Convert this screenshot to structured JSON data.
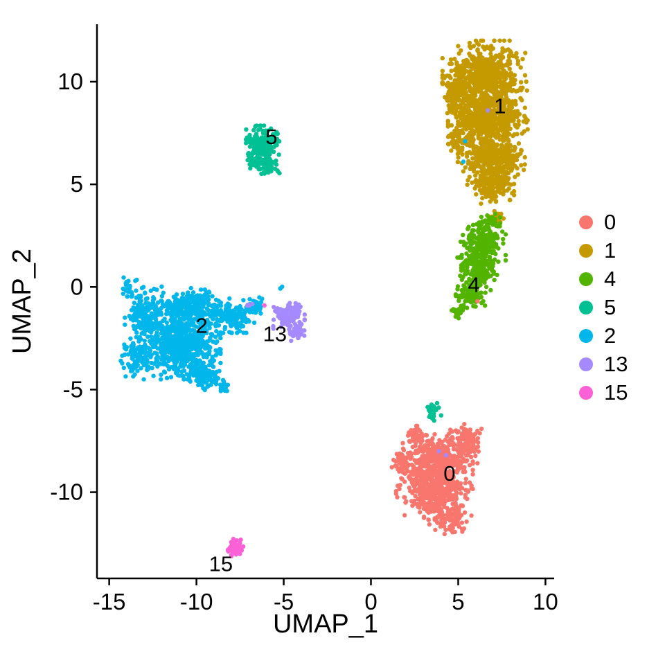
{
  "chart_data": {
    "type": "scatter",
    "title": "",
    "xlabel": "UMAP_1",
    "ylabel": "UMAP_2",
    "xlim": [
      -15.7,
      10.5
    ],
    "ylim": [
      -14.2,
      12.8
    ],
    "x_ticks": [
      -15,
      -10,
      -5,
      0,
      5,
      10
    ],
    "y_ticks": [
      -10,
      -5,
      0,
      5,
      10
    ],
    "grid": false,
    "legend_position": "right",
    "axis_color": "#000000",
    "text_color": "#000000",
    "legend": [
      {
        "label": "0",
        "color": "#F8766D"
      },
      {
        "label": "1",
        "color": "#C49A00"
      },
      {
        "label": "4",
        "color": "#53B400"
      },
      {
        "label": "5",
        "color": "#00C094"
      },
      {
        "label": "2",
        "color": "#00B6EB"
      },
      {
        "label": "13",
        "color": "#A58AFF"
      },
      {
        "label": "15",
        "color": "#FB61D7"
      }
    ],
    "clusters": [
      {
        "id": "1",
        "color": "#C49A00",
        "label": "1",
        "label_pos": [
          7.4,
          8.8
        ],
        "blobs": [
          {
            "cx": 6.5,
            "cy": 10.2,
            "rx": 2.0,
            "ry": 1.5,
            "n": 600
          },
          {
            "cx": 6.7,
            "cy": 8.2,
            "rx": 1.9,
            "ry": 1.3,
            "n": 550
          },
          {
            "cx": 6.9,
            "cy": 6.3,
            "rx": 1.6,
            "ry": 1.1,
            "n": 380
          },
          {
            "cx": 7.0,
            "cy": 4.9,
            "rx": 1.0,
            "ry": 0.7,
            "n": 140
          },
          {
            "cx": 4.8,
            "cy": 9.4,
            "rx": 0.6,
            "ry": 1.0,
            "n": 90
          },
          {
            "cx": 4.9,
            "cy": 7.1,
            "rx": 0.4,
            "ry": 0.7,
            "n": 45
          },
          {
            "cx": 7.2,
            "cy": 3.4,
            "rx": 0.4,
            "ry": 0.3,
            "n": 25
          }
        ]
      },
      {
        "id": "4",
        "color": "#53B400",
        "label": "4",
        "label_pos": [
          5.9,
          0.1
        ],
        "blobs": [
          {
            "cx": 6.4,
            "cy": 2.1,
            "rx": 1.1,
            "ry": 1.0,
            "n": 220
          },
          {
            "cx": 6.1,
            "cy": 0.8,
            "rx": 1.0,
            "ry": 0.9,
            "n": 190
          },
          {
            "cx": 5.7,
            "cy": -0.5,
            "rx": 0.7,
            "ry": 0.6,
            "n": 90
          },
          {
            "cx": 5.0,
            "cy": -1.2,
            "rx": 0.35,
            "ry": 0.3,
            "n": 25
          },
          {
            "cx": 6.8,
            "cy": 3.2,
            "rx": 0.5,
            "ry": 0.3,
            "n": 35
          }
        ]
      },
      {
        "id": "5",
        "color": "#00C094",
        "label": "5",
        "label_pos": [
          -5.7,
          7.3
        ],
        "blobs": [
          {
            "cx": -6.2,
            "cy": 6.9,
            "rx": 0.85,
            "ry": 0.8,
            "n": 190
          },
          {
            "cx": -5.9,
            "cy": 5.9,
            "rx": 0.55,
            "ry": 0.45,
            "n": 55
          },
          {
            "cx": -6.7,
            "cy": 6.1,
            "rx": 0.3,
            "ry": 0.3,
            "n": 20
          },
          {
            "cx": 3.6,
            "cy": -6.0,
            "rx": 0.35,
            "ry": 0.45,
            "n": 30
          }
        ]
      },
      {
        "id": "2",
        "color": "#00B6EB",
        "label": "2",
        "label_pos": [
          -9.7,
          -1.9
        ],
        "blobs": [
          {
            "cx": -10.9,
            "cy": -2.7,
            "rx": 1.9,
            "ry": 1.5,
            "n": 650
          },
          {
            "cx": -12.9,
            "cy": -1.3,
            "rx": 1.0,
            "ry": 1.1,
            "n": 190
          },
          {
            "cx": -13.4,
            "cy": -3.4,
            "rx": 0.8,
            "ry": 0.8,
            "n": 110
          },
          {
            "cx": -10.4,
            "cy": -0.9,
            "rx": 1.5,
            "ry": 0.7,
            "n": 230
          },
          {
            "cx": -8.0,
            "cy": -1.4,
            "rx": 1.2,
            "ry": 0.7,
            "n": 180
          },
          {
            "cx": -6.6,
            "cy": -0.9,
            "rx": 0.5,
            "ry": 0.4,
            "n": 45
          },
          {
            "cx": -9.7,
            "cy": -4.3,
            "rx": 0.9,
            "ry": 0.6,
            "n": 100
          },
          {
            "cx": -8.5,
            "cy": -4.9,
            "rx": 0.3,
            "ry": 0.3,
            "n": 20
          },
          {
            "cx": -13.9,
            "cy": -0.1,
            "rx": 0.4,
            "ry": 0.5,
            "n": 30
          },
          {
            "cx": -5.2,
            "cy": 0.0,
            "rx": 0.12,
            "ry": 0.12,
            "n": 3
          }
        ]
      },
      {
        "id": "13",
        "color": "#A58AFF",
        "label": "13",
        "label_pos": [
          -5.5,
          -2.3
        ],
        "blobs": [
          {
            "cx": -4.7,
            "cy": -1.4,
            "rx": 0.75,
            "ry": 0.55,
            "n": 120
          },
          {
            "cx": -4.3,
            "cy": -2.2,
            "rx": 0.4,
            "ry": 0.35,
            "n": 35
          },
          {
            "cx": -6.9,
            "cy": -0.9,
            "rx": 0.2,
            "ry": 0.12,
            "n": 5
          }
        ]
      },
      {
        "id": "0",
        "color": "#F8766D",
        "label": "0",
        "label_pos": [
          4.5,
          -9.1
        ],
        "blobs": [
          {
            "cx": 3.8,
            "cy": -8.4,
            "rx": 1.7,
            "ry": 1.2,
            "n": 420
          },
          {
            "cx": 3.6,
            "cy": -9.9,
            "rx": 1.8,
            "ry": 1.2,
            "n": 420
          },
          {
            "cx": 4.5,
            "cy": -11.2,
            "rx": 1.0,
            "ry": 0.7,
            "n": 120
          },
          {
            "cx": 5.5,
            "cy": -7.6,
            "rx": 0.7,
            "ry": 0.9,
            "n": 100
          },
          {
            "cx": 1.8,
            "cy": -8.6,
            "rx": 0.5,
            "ry": 0.6,
            "n": 55
          },
          {
            "cx": 2.6,
            "cy": -7.2,
            "rx": 0.5,
            "ry": 0.4,
            "n": 45
          }
        ]
      },
      {
        "id": "15",
        "color": "#FB61D7",
        "label": "15",
        "label_pos": [
          -8.6,
          -13.5
        ],
        "blobs": [
          {
            "cx": -7.8,
            "cy": -12.7,
            "rx": 0.4,
            "ry": 0.35,
            "n": 60
          }
        ]
      }
    ],
    "outliers": [
      {
        "x": 5.4,
        "y": 7.1,
        "color": "#00B6EB"
      },
      {
        "x": 5.3,
        "y": 6.1,
        "color": "#00B6EB"
      },
      {
        "x": 6.7,
        "y": 8.6,
        "color": "#A58AFF"
      },
      {
        "x": 6.1,
        "y": -0.7,
        "color": "#F8766D"
      },
      {
        "x": 3.9,
        "y": -8.0,
        "color": "#A58AFF"
      },
      {
        "x": 4.3,
        "y": -8.2,
        "color": "#A58AFF"
      },
      {
        "x": -6.1,
        "y": -0.9,
        "color": "#FB61D7"
      }
    ]
  }
}
